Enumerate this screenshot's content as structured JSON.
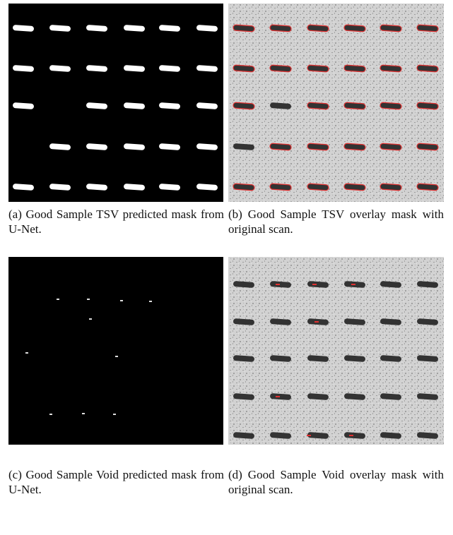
{
  "subfigures": [
    {
      "label": "(a)",
      "caption": "Good Sample TSV pre­dicted mask from U-Net."
    },
    {
      "label": "(b)",
      "caption": "Good Sample TSV overlay mask with original scan."
    },
    {
      "label": "(c)",
      "caption": "Good Sample Void pre­dicted mask from U-Net."
    },
    {
      "label": "(d)",
      "caption": "Good Sample Void overlay mask with original scan."
    }
  ]
}
